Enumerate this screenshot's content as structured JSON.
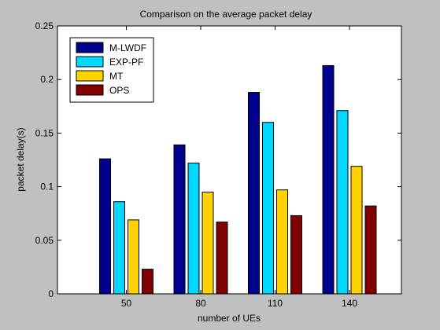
{
  "chart_data": {
    "type": "bar",
    "title": "Comparison on the average packet delay",
    "xlabel": "number of UEs",
    "ylabel": "packet delay(s)",
    "categories": [
      "50",
      "80",
      "110",
      "140"
    ],
    "ylim": [
      0,
      0.25
    ],
    "yticks": [
      "0",
      "0.05",
      "0.1",
      "0.15",
      "0.2",
      "0.25"
    ],
    "series": [
      {
        "name": "M-LWDF",
        "color": "#00008f",
        "values": [
          0.126,
          0.139,
          0.188,
          0.213
        ]
      },
      {
        "name": "EXP-PF",
        "color": "#00d8ff",
        "values": [
          0.086,
          0.122,
          0.16,
          0.171
        ]
      },
      {
        "name": "MT",
        "color": "#ffd200",
        "values": [
          0.069,
          0.095,
          0.097,
          0.119
        ]
      },
      {
        "name": "OPS",
        "color": "#800000",
        "values": [
          0.023,
          0.067,
          0.073,
          0.082
        ]
      }
    ],
    "grid": false,
    "legend_position": "top-left"
  }
}
